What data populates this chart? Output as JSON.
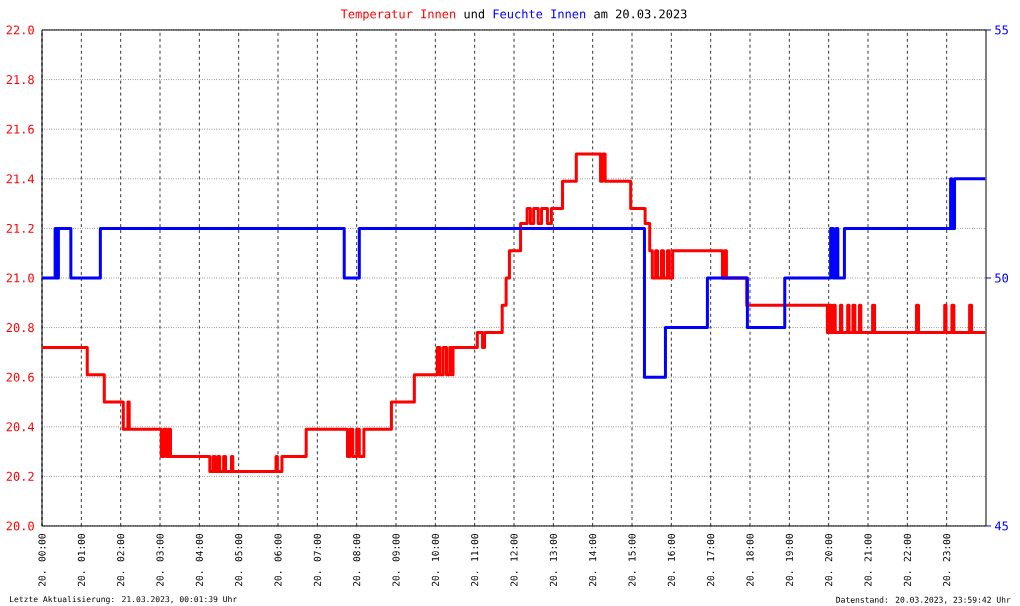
{
  "chart_data": {
    "type": "step",
    "annotations": [
      "und",
      "am 20.03.2023",
      "Letzte Aktualisierung: 21.03.2023, 00:01:39 Uhr",
      "Datenstand: 20.03.2023, 23:59:42 Uhr"
    ],
    "series": [
      {
        "name": "Temperatur Innen",
        "color": "#ff0000",
        "axis": "y",
        "x": [
          "2023-03-20T00:00",
          "2023-03-20T01:09",
          "2023-03-20T01:35",
          "2023-03-20T02:04",
          "2023-03-20T02:11",
          "2023-03-20T02:13",
          "2023-03-20T03:02",
          "2023-03-20T03:06",
          "2023-03-20T03:10",
          "2023-03-20T03:13",
          "2023-03-20T03:16",
          "2023-03-20T04:16",
          "2023-03-20T04:21",
          "2023-03-20T04:24",
          "2023-03-20T04:28",
          "2023-03-20T04:31",
          "2023-03-20T04:37",
          "2023-03-20T04:40",
          "2023-03-20T04:49",
          "2023-03-20T04:51",
          "2023-03-20T05:57",
          "2023-03-20T05:59",
          "2023-03-20T06:06",
          "2023-03-20T06:43",
          "2023-03-20T07:46",
          "2023-03-20T07:50",
          "2023-03-20T07:54",
          "2023-03-20T08:00",
          "2023-03-20T08:04",
          "2023-03-20T08:11",
          "2023-03-20T08:53",
          "2023-03-20T09:28",
          "2023-03-20T10:03",
          "2023-03-20T10:07",
          "2023-03-20T10:12",
          "2023-03-20T10:17",
          "2023-03-20T10:22",
          "2023-03-20T10:26",
          "2023-03-20T10:27",
          "2023-03-20T11:04",
          "2023-03-20T11:12",
          "2023-03-20T11:15",
          "2023-03-20T11:42",
          "2023-03-20T11:48",
          "2023-03-20T11:53",
          "2023-03-20T12:10",
          "2023-03-20T12:20",
          "2023-03-20T12:25",
          "2023-03-20T12:30",
          "2023-03-20T12:37",
          "2023-03-20T12:42",
          "2023-03-20T12:51",
          "2023-03-20T12:57",
          "2023-03-20T13:14",
          "2023-03-20T13:35",
          "2023-03-20T14:12",
          "2023-03-20T14:15",
          "2023-03-20T14:19",
          "2023-03-20T14:58",
          "2023-03-20T15:20",
          "2023-03-20T15:27",
          "2023-03-20T15:31",
          "2023-03-20T15:36",
          "2023-03-20T15:39",
          "2023-03-20T15:45",
          "2023-03-20T15:48",
          "2023-03-20T15:54",
          "2023-03-20T15:57",
          "2023-03-20T16:02",
          "2023-03-20T17:18",
          "2023-03-20T17:21",
          "2023-03-20T17:24",
          "2023-03-20T17:55",
          "2023-03-20T19:58",
          "2023-03-20T20:01",
          "2023-03-20T20:04",
          "2023-03-20T20:07",
          "2023-03-20T20:10",
          "2023-03-20T20:18",
          "2023-03-20T20:20",
          "2023-03-20T20:29",
          "2023-03-20T20:31",
          "2023-03-20T20:37",
          "2023-03-20T20:40",
          "2023-03-20T20:47",
          "2023-03-20T20:49",
          "2023-03-20T21:07",
          "2023-03-20T21:10",
          "2023-03-20T22:14",
          "2023-03-20T22:17",
          "2023-03-20T22:57",
          "2023-03-20T22:59",
          "2023-03-20T23:08",
          "2023-03-20T23:11",
          "2023-03-20T23:35",
          "2023-03-20T23:38",
          "2023-03-20T23:59"
        ],
        "values": [
          20.72,
          20.61,
          20.5,
          20.39,
          20.5,
          20.39,
          20.28,
          20.39,
          20.28,
          20.39,
          20.28,
          20.22,
          20.28,
          20.22,
          20.28,
          20.22,
          20.28,
          20.22,
          20.28,
          20.22,
          20.28,
          20.22,
          20.28,
          20.39,
          20.28,
          20.39,
          20.28,
          20.39,
          20.28,
          20.39,
          20.5,
          20.61,
          20.72,
          20.61,
          20.72,
          20.61,
          20.72,
          20.61,
          20.72,
          20.78,
          20.72,
          20.78,
          20.89,
          21.0,
          21.11,
          21.22,
          21.28,
          21.22,
          21.28,
          21.22,
          21.28,
          21.22,
          21.28,
          21.39,
          21.5,
          21.39,
          21.5,
          21.39,
          21.28,
          21.22,
          21.11,
          21.0,
          21.11,
          21.0,
          21.11,
          21.0,
          21.11,
          21.0,
          21.11,
          21.0,
          21.11,
          21.0,
          20.89,
          20.78,
          20.89,
          20.78,
          20.89,
          20.78,
          20.89,
          20.78,
          20.89,
          20.78,
          20.89,
          20.78,
          20.89,
          20.78,
          20.89,
          20.78,
          20.89,
          20.78,
          20.89,
          20.78,
          20.89,
          20.78,
          20.89,
          20.78,
          20.78
        ]
      },
      {
        "name": "Feuchte Innen",
        "color": "#0000ff",
        "axis": "y2",
        "x": [
          "2023-03-20T00:00",
          "2023-03-20T00:20",
          "2023-03-20T00:21",
          "2023-03-20T00:22",
          "2023-03-20T00:23",
          "2023-03-20T00:25",
          "2023-03-20T00:44",
          "2023-03-20T01:29",
          "2023-03-20T07:41",
          "2023-03-20T08:04",
          "2023-03-20T15:19",
          "2023-03-20T15:51",
          "2023-03-20T16:55",
          "2023-03-20T17:56",
          "2023-03-20T18:53",
          "2023-03-20T20:03",
          "2023-03-20T20:07",
          "2023-03-20T20:11",
          "2023-03-20T20:14",
          "2023-03-20T20:24",
          "2023-03-20T23:06",
          "2023-03-20T23:08",
          "2023-03-20T23:12",
          "2023-03-20T23:59"
        ],
        "values": [
          50,
          51,
          50,
          51,
          50,
          51,
          50,
          51,
          50,
          51,
          48,
          49,
          50,
          49,
          50,
          51,
          50,
          51,
          50,
          51,
          52,
          51,
          52,
          52
        ]
      }
    ],
    "xlim": [
      "2023-03-20T00:00",
      "2023-03-21T00:00"
    ],
    "xticks": [
      {
        "value": "2023-03-20T00:00",
        "label": "20. 00:00"
      },
      {
        "value": "2023-03-20T01:00",
        "label": "20. 01:00"
      },
      {
        "value": "2023-03-20T02:00",
        "label": "20. 02:00"
      },
      {
        "value": "2023-03-20T03:00",
        "label": "20. 03:00"
      },
      {
        "value": "2023-03-20T04:00",
        "label": "20. 04:00"
      },
      {
        "value": "2023-03-20T05:00",
        "label": "20. 05:00"
      },
      {
        "value": "2023-03-20T06:00",
        "label": "20. 06:00"
      },
      {
        "value": "2023-03-20T07:00",
        "label": "20. 07:00"
      },
      {
        "value": "2023-03-20T08:00",
        "label": "20. 08:00"
      },
      {
        "value": "2023-03-20T09:00",
        "label": "20. 09:00"
      },
      {
        "value": "2023-03-20T10:00",
        "label": "20. 10:00"
      },
      {
        "value": "2023-03-20T11:00",
        "label": "20. 11:00"
      },
      {
        "value": "2023-03-20T12:00",
        "label": "20. 12:00"
      },
      {
        "value": "2023-03-20T13:00",
        "label": "20. 13:00"
      },
      {
        "value": "2023-03-20T14:00",
        "label": "20. 14:00"
      },
      {
        "value": "2023-03-20T15:00",
        "label": "20. 15:00"
      },
      {
        "value": "2023-03-20T16:00",
        "label": "20. 16:00"
      },
      {
        "value": "2023-03-20T17:00",
        "label": "20. 17:00"
      },
      {
        "value": "2023-03-20T18:00",
        "label": "20. 18:00"
      },
      {
        "value": "2023-03-20T19:00",
        "label": "20. 19:00"
      },
      {
        "value": "2023-03-20T20:00",
        "label": "20. 20:00"
      },
      {
        "value": "2023-03-20T21:00",
        "label": "20. 21:00"
      },
      {
        "value": "2023-03-20T22:00",
        "label": "20. 22:00"
      },
      {
        "value": "2023-03-20T23:00",
        "label": "20. 23:00"
      }
    ],
    "ylim": [
      20.0,
      22.0
    ],
    "yticks": [
      {
        "value": 20.0,
        "label": "20.0"
      },
      {
        "value": 20.2,
        "label": "20.2"
      },
      {
        "value": 20.4,
        "label": "20.4"
      },
      {
        "value": 20.6,
        "label": "20.6"
      },
      {
        "value": 20.8,
        "label": "20.8"
      },
      {
        "value": 21.0,
        "label": "21.0"
      },
      {
        "value": 21.2,
        "label": "21.2"
      },
      {
        "value": 21.4,
        "label": "21.4"
      },
      {
        "value": 21.6,
        "label": "21.6"
      },
      {
        "value": 21.8,
        "label": "21.8"
      },
      {
        "value": 22.0,
        "label": "22.0"
      }
    ],
    "y2lim": [
      45,
      55
    ],
    "y2ticks": [
      45,
      50,
      55
    ],
    "grid": true,
    "line_style": "solid"
  }
}
